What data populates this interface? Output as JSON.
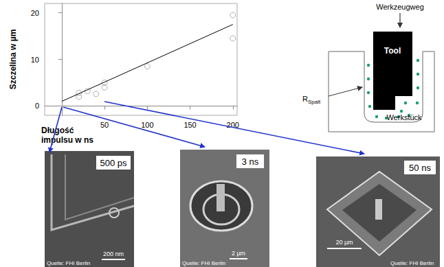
{
  "chart_data": {
    "type": "scatter",
    "x_label": "Długość impulsu w ns",
    "y_label": "Szczelina w µm",
    "x": [
      20,
      20,
      30,
      40,
      50,
      50,
      100,
      200,
      200
    ],
    "values": [
      2.0,
      2.8,
      3.2,
      2.6,
      4.0,
      5.0,
      8.5,
      14.5,
      19.5
    ],
    "color": "#9a9a9a",
    "marker": "circle",
    "trend_line": {
      "x": [
        0,
        200
      ],
      "values": [
        1,
        17.5
      ],
      "color": "#000000"
    },
    "xlim": [
      -20,
      205
    ],
    "ylim": [
      -2,
      22
    ],
    "xticks": [
      50,
      100,
      150,
      200
    ],
    "yticks": [
      0,
      10,
      20
    ],
    "grid": false
  },
  "diagram": {
    "path": "Werkzeugweg",
    "tool": "Tool",
    "workpiece": "Werkstück",
    "gap_symbol": "R",
    "gap_subscript": "Spalt"
  },
  "images": [
    {
      "label": "500 ps",
      "scale": "200 nm",
      "source": "Quelle: FHI Berlin"
    },
    {
      "label": "3 ns",
      "scale": "2 µm",
      "source": "Quelle: FHI Berlin"
    },
    {
      "label": "50 ns",
      "scale": "20 µm",
      "source": "Quelle: FHI Berlin"
    }
  ]
}
